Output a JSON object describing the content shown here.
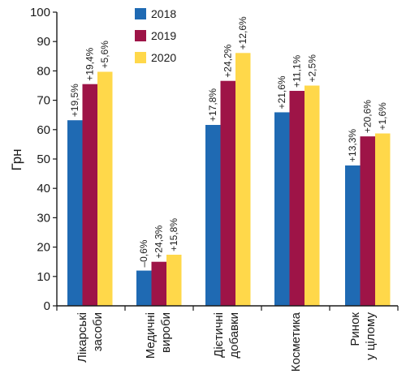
{
  "chart_data": {
    "type": "bar",
    "ylabel": "Грн",
    "ylim": [
      0,
      100
    ],
    "yticks": [
      0,
      10,
      20,
      30,
      40,
      50,
      60,
      70,
      80,
      90,
      100
    ],
    "legend_position": "top-center",
    "grid": false,
    "categories": [
      [
        "Лікарські",
        "засоби"
      ],
      [
        "Медичні",
        "вироби"
      ],
      [
        "Дієтичні",
        "добавки"
      ],
      [
        "Косметика"
      ],
      [
        "Ринок",
        "у цілому"
      ]
    ],
    "series": [
      {
        "name": "2018",
        "color": "#1f6ab3",
        "values": [
          63.2,
          12.0,
          61.6,
          65.9,
          47.8
        ],
        "labels": [
          "+19,5%",
          "–0,6%",
          "+17,8%",
          "+21,6%",
          "+13,3%"
        ]
      },
      {
        "name": "2019",
        "color": "#9e1447",
        "values": [
          75.5,
          15.0,
          76.6,
          73.2,
          57.7
        ],
        "labels": [
          "+19,4%",
          "+24,3%",
          "+24,2%",
          "+11,1%",
          "+20,6%"
        ]
      },
      {
        "name": "2020",
        "color": "#ffd84a",
        "values": [
          79.7,
          17.4,
          86.1,
          75.0,
          58.7
        ],
        "labels": [
          "+5,6%",
          "+15,8%",
          "+12,6%",
          "+2,5%",
          "+1,6%"
        ]
      }
    ]
  }
}
